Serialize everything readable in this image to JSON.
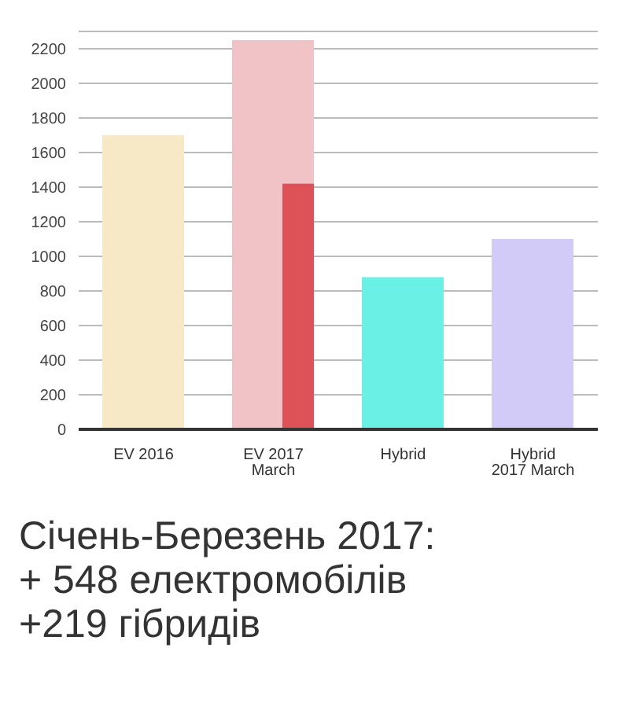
{
  "chart_data": {
    "type": "bar",
    "title": "Січень-Березень 2017:\n+ 548 електромобілів\n+219 гібридів",
    "categories": [
      "EV 2016",
      "EV 2017 March",
      "Hybrid",
      "Hybrid 2017 March"
    ],
    "series": [
      {
        "colors": [
          "#f8e9c6",
          "#f2c3c6",
          "#6af0e4",
          "#d3cbf7"
        ],
        "values": [
          1700,
          2250,
          880,
          1100
        ]
      },
      {
        "color": "#dc5257",
        "values": [
          null,
          1420,
          null,
          null
        ]
      }
    ],
    "ylim": [
      0,
      2300
    ],
    "yticks": [
      0,
      200,
      400,
      600,
      800,
      1000,
      1200,
      1400,
      1600,
      1800,
      2000,
      2200
    ],
    "grid": "y"
  }
}
